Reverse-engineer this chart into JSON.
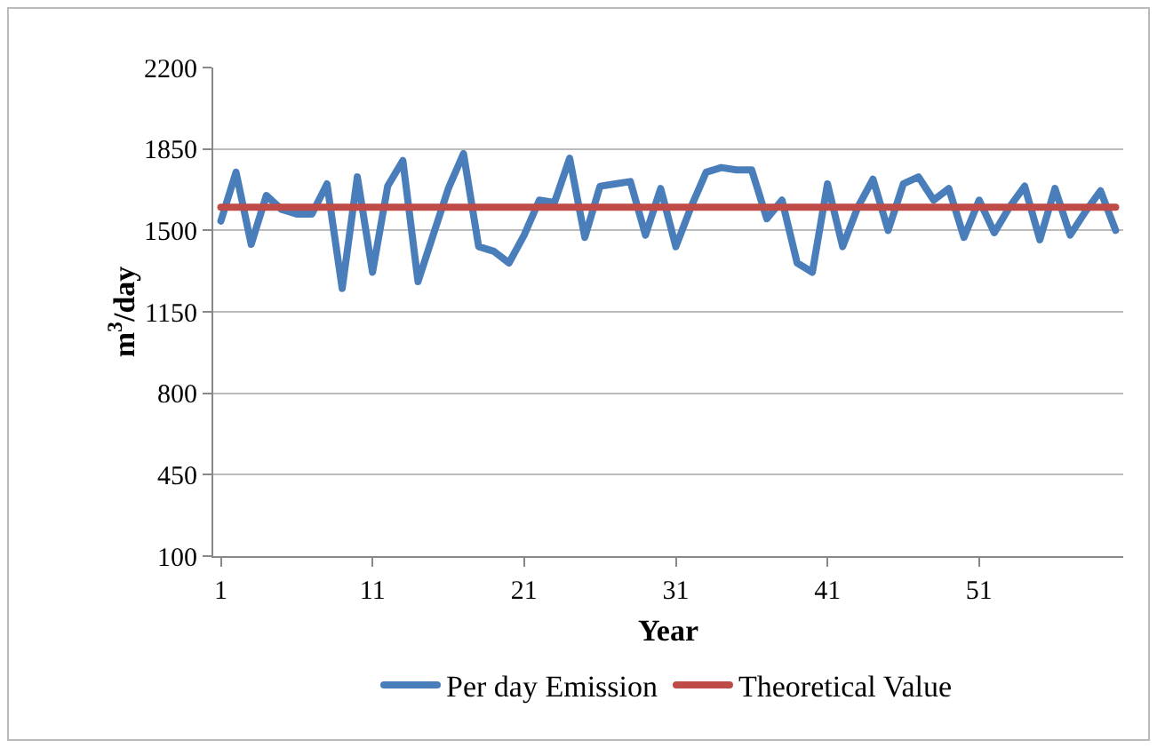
{
  "chart_data": {
    "type": "line",
    "xlabel": "Year",
    "ylabel": "m$^{3}$/day",
    "x": [
      1,
      2,
      3,
      4,
      5,
      6,
      7,
      8,
      9,
      10,
      11,
      12,
      13,
      14,
      15,
      16,
      17,
      18,
      19,
      20,
      21,
      22,
      23,
      24,
      25,
      26,
      27,
      28,
      29,
      30,
      31,
      32,
      33,
      34,
      35,
      36,
      37,
      38,
      39,
      40,
      41,
      42,
      43,
      44,
      45,
      46,
      47,
      48,
      49,
      50,
      51,
      52,
      53,
      54,
      55,
      56,
      57,
      58,
      59,
      60
    ],
    "series": [
      {
        "name": "Per day Emission",
        "color": "#4a7ebb",
        "values": [
          1540,
          1750,
          1440,
          1650,
          1590,
          1570,
          1570,
          1700,
          1250,
          1730,
          1320,
          1690,
          1800,
          1280,
          1480,
          1680,
          1830,
          1430,
          1410,
          1360,
          1480,
          1630,
          1620,
          1810,
          1470,
          1690,
          1700,
          1710,
          1480,
          1680,
          1430,
          1600,
          1750,
          1770,
          1760,
          1760,
          1550,
          1630,
          1360,
          1320,
          1700,
          1430,
          1600,
          1720,
          1500,
          1700,
          1730,
          1630,
          1680,
          1470,
          1630,
          1490,
          1600,
          1690,
          1460,
          1680,
          1480,
          1580,
          1670,
          1500
        ]
      },
      {
        "name": "Theoretical Value",
        "color": "#be4b48",
        "values": [
          1600,
          1600,
          1600,
          1600,
          1600,
          1600,
          1600,
          1600,
          1600,
          1600,
          1600,
          1600,
          1600,
          1600,
          1600,
          1600,
          1600,
          1600,
          1600,
          1600,
          1600,
          1600,
          1600,
          1600,
          1600,
          1600,
          1600,
          1600,
          1600,
          1600,
          1600,
          1600,
          1600,
          1600,
          1600,
          1600,
          1600,
          1600,
          1600,
          1600,
          1600,
          1600,
          1600,
          1600,
          1600,
          1600,
          1600,
          1600,
          1600,
          1600,
          1600,
          1600,
          1600,
          1600,
          1600,
          1600,
          1600,
          1600,
          1600,
          1600
        ]
      }
    ],
    "xlim": [
      0.5,
      60.5
    ],
    "xticks": [
      1,
      11,
      21,
      31,
      41,
      51
    ],
    "ylim": [
      100,
      2200
    ],
    "yticks": [
      100,
      450,
      800,
      1150,
      1500,
      1850,
      2200
    ],
    "grid": "y",
    "legend": "bottom",
    "marker": "none",
    "line_style": "solid"
  }
}
